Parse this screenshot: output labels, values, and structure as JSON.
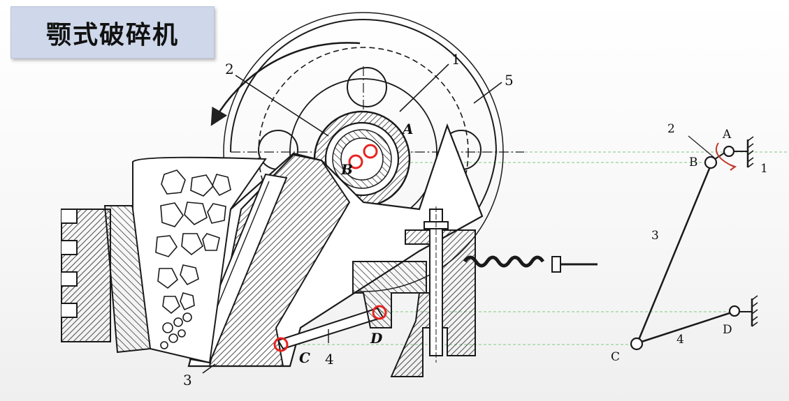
{
  "title": "颚式破碎机",
  "drawing": {
    "labels": {
      "n1": "1",
      "n2": "2",
      "n3": "3",
      "n4": "4",
      "n5": "5",
      "A": "A",
      "B": "B",
      "C": "C",
      "D": "D"
    }
  },
  "kinematic": {
    "labels": {
      "n1": "1",
      "n2": "2",
      "n3": "3",
      "n4": "4",
      "A": "A",
      "B": "B",
      "C": "C",
      "D": "D"
    }
  },
  "colors": {
    "highlight": "#e8231f",
    "guide": "#7fc97f",
    "title_bg": "#cfd8ea",
    "ink": "#1a1a1a"
  }
}
